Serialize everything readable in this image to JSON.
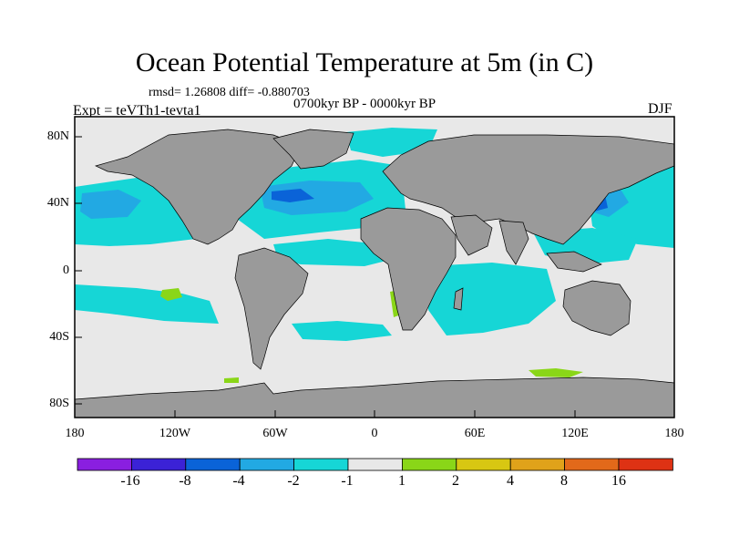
{
  "title": "Ocean Potential Temperature at 5m (in C)",
  "stats": "rmsd= 1.26808 diff= -0.880703",
  "period": "0700kyr BP - 0000kyr BP",
  "experiment": "Expt = teVTh1-tevta1",
  "season": "DJF",
  "lat_labels": [
    "80N",
    "40N",
    "0",
    "40S",
    "80S"
  ],
  "lon_labels": [
    "180",
    "120W",
    "60W",
    "0",
    "60E",
    "120E",
    "180"
  ],
  "colorbar": {
    "labels": [
      "-16",
      "-8",
      "-4",
      "-2",
      "-1",
      "1",
      "2",
      "4",
      "8",
      "16"
    ],
    "colors": [
      "#8a1fe0",
      "#3b22d6",
      "#0a63d8",
      "#22a9e3",
      "#16d6d6",
      "#e8e8e8",
      "#8ad618",
      "#d8c712",
      "#e0a21a",
      "#e2691a",
      "#de3214"
    ]
  },
  "map_colors": {
    "ocean_default": "#e8e8e8",
    "land": "#9a9a9a"
  }
}
